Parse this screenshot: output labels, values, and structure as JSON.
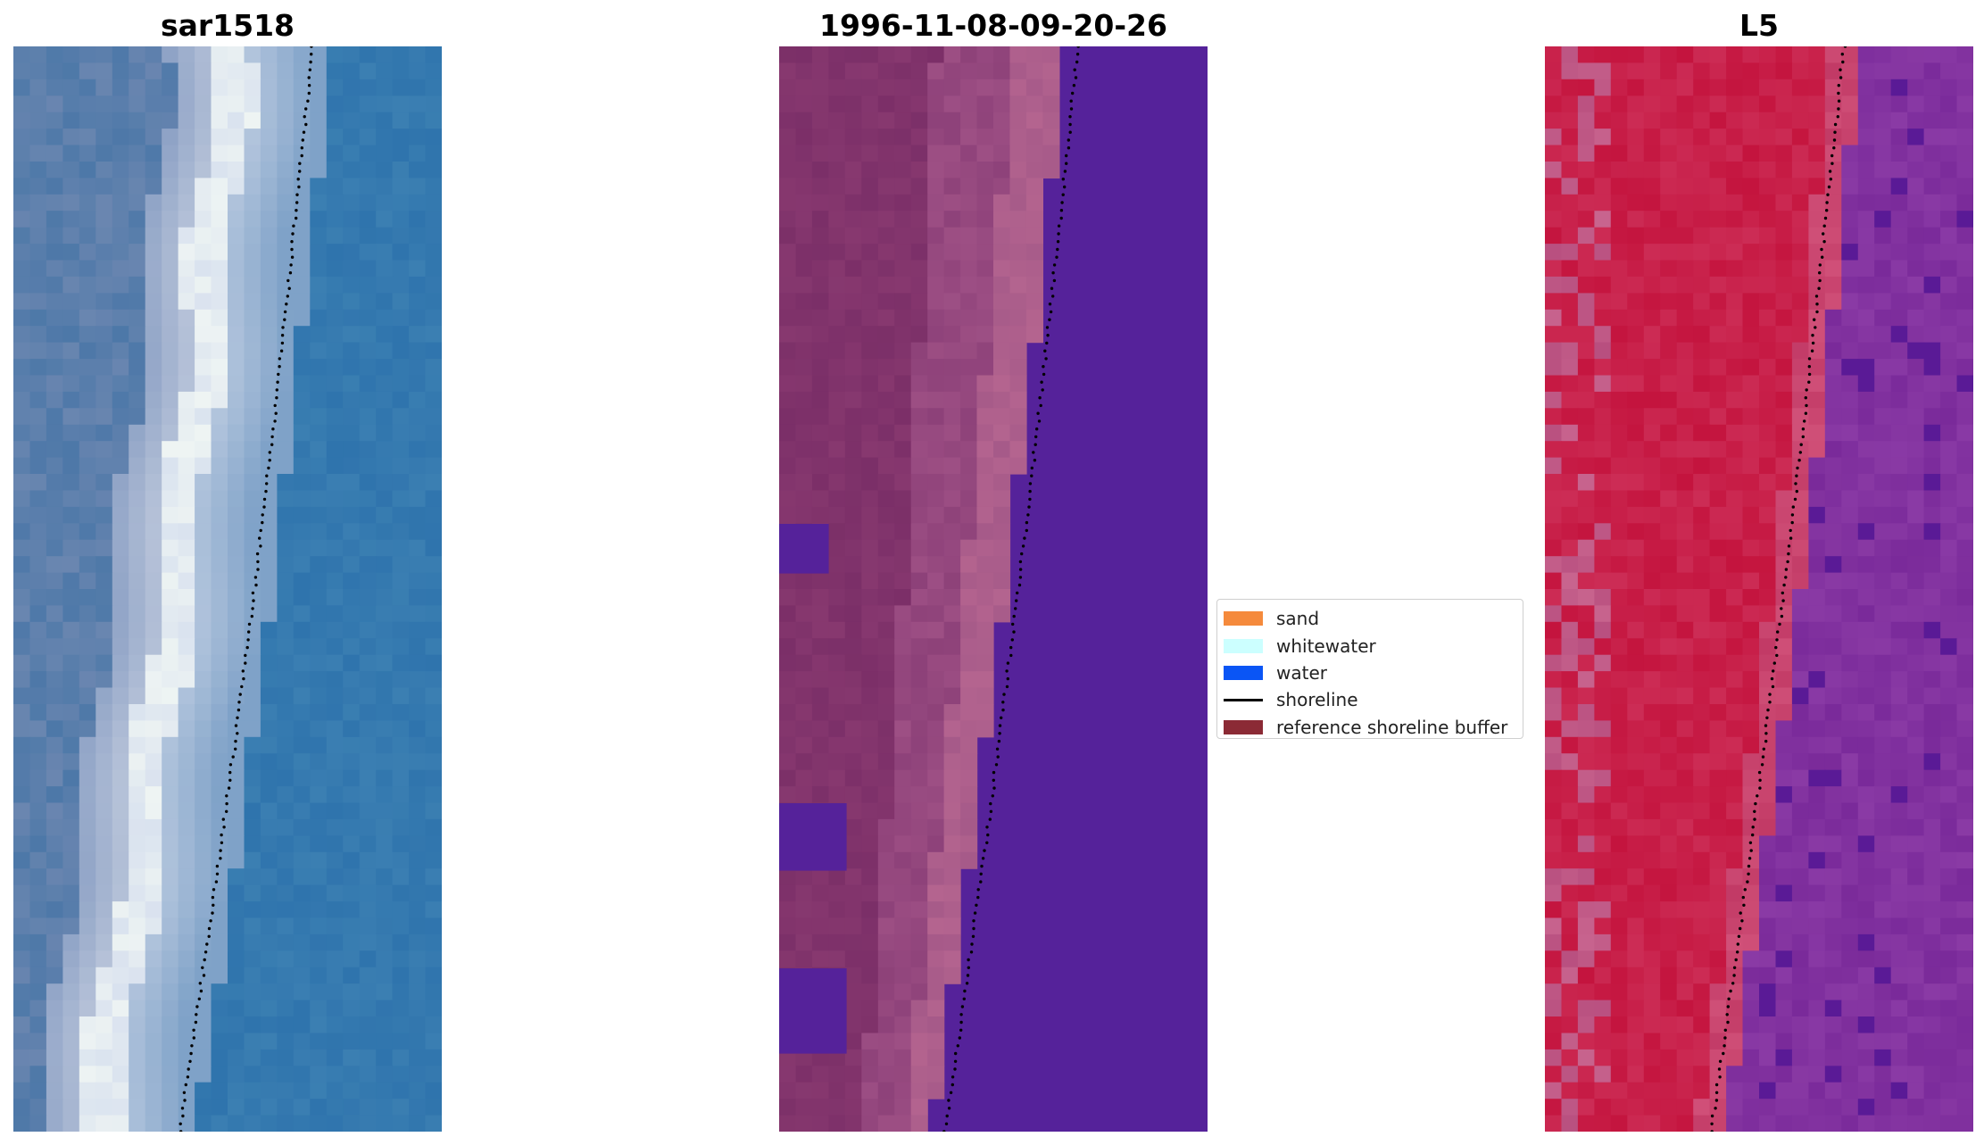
{
  "panels": [
    {
      "title": "sar1518",
      "kind": "rgb-image"
    },
    {
      "title": "1996-11-08-09-20-26",
      "kind": "classified-image"
    },
    {
      "title": "L5",
      "kind": "index-image"
    }
  ],
  "legend": {
    "items": [
      {
        "label": "sand",
        "color": "#f58a3c",
        "kind": "patch"
      },
      {
        "label": "whitewater",
        "color": "#ccffff",
        "kind": "patch"
      },
      {
        "label": "water",
        "color": "#0a55f5",
        "kind": "patch"
      },
      {
        "label": "shoreline",
        "color": "#000000",
        "kind": "line"
      },
      {
        "label": "reference shoreline buffer",
        "color": "#8b2a35",
        "kind": "patch"
      }
    ]
  },
  "colors": {
    "water_class_fill": "#55229a",
    "sar_water": "#2f74ad",
    "index_land": "#c0183e",
    "index_water": "#7d2a9c",
    "shoreline_dots": "#000000"
  }
}
